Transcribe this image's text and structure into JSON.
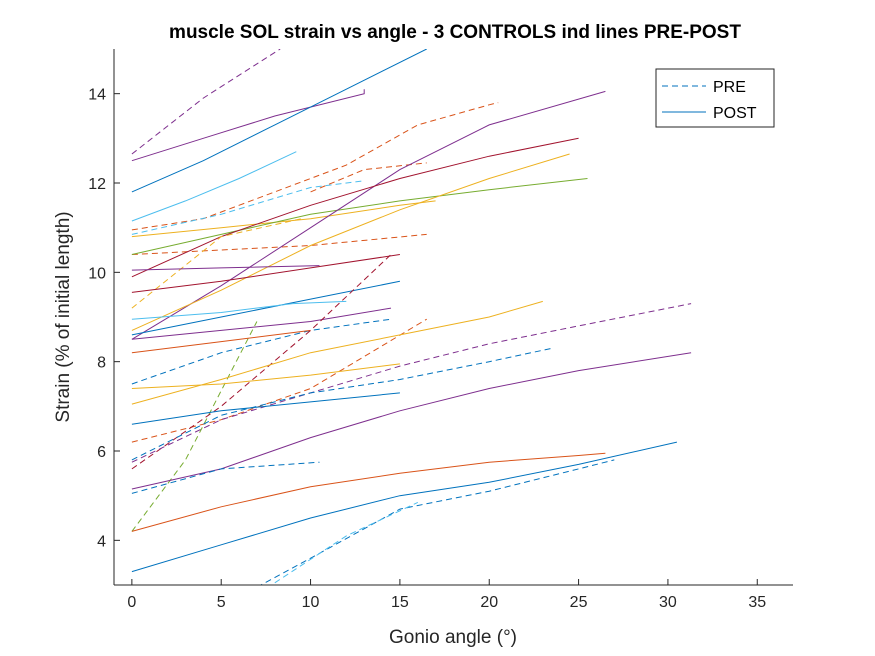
{
  "chart_data": {
    "type": "line",
    "title": "muscle SOL strain vs angle - 3 CONTROLS ind lines PRE-POST",
    "xlabel": "Gonio angle (°)",
    "ylabel": "Strain (% of initial length)",
    "xlim": [
      -1,
      37
    ],
    "ylim": [
      3,
      15
    ],
    "xticks": [
      "0",
      "5",
      "10",
      "15",
      "20",
      "25",
      "30",
      "35"
    ],
    "yticks": [
      "4",
      "6",
      "8",
      "10",
      "12",
      "14"
    ],
    "grid": false,
    "legend_position": "top-right",
    "legend": [
      {
        "label": "PRE",
        "style": "dashed",
        "color": "#0072BD"
      },
      {
        "label": "POST",
        "style": "solid",
        "color": "#0072BD"
      }
    ],
    "series": [
      {
        "style": "dashed",
        "color": "#7E2F8E",
        "x": [
          0,
          4,
          8.3
        ],
        "y": [
          12.65,
          13.9,
          15.0
        ]
      },
      {
        "style": "solid",
        "color": "#7E2F8E",
        "x": [
          0,
          4,
          8,
          13,
          13
        ],
        "y": [
          12.5,
          13.0,
          13.5,
          14.0,
          14.1
        ]
      },
      {
        "style": "solid",
        "color": "#0072BD",
        "x": [
          0,
          4,
          8,
          12,
          16.5
        ],
        "y": [
          11.8,
          12.5,
          13.3,
          14.1,
          15.0
        ]
      },
      {
        "style": "solid",
        "color": "#4DBEEE",
        "x": [
          0,
          3,
          6,
          9.2
        ],
        "y": [
          11.15,
          11.6,
          12.1,
          12.7
        ]
      },
      {
        "style": "dashed",
        "color": "#D95319",
        "x": [
          0,
          4,
          8,
          12,
          16,
          20,
          20.5
        ],
        "y": [
          10.95,
          11.2,
          11.8,
          12.4,
          13.3,
          13.75,
          13.8
        ]
      },
      {
        "style": "dashed",
        "color": "#D95319",
        "x": [
          0,
          5,
          10,
          16.5
        ],
        "y": [
          10.4,
          10.5,
          10.6,
          10.85
        ]
      },
      {
        "style": "dashed",
        "color": "#D95319",
        "x": [
          10,
          13,
          16.5
        ],
        "y": [
          11.8,
          12.3,
          12.45
        ]
      },
      {
        "style": "dashed",
        "color": "#4DBEEE",
        "x": [
          0,
          5,
          10,
          13
        ],
        "y": [
          10.85,
          11.3,
          11.9,
          12.05
        ]
      },
      {
        "style": "solid",
        "color": "#EDB120",
        "x": [
          0,
          5,
          10,
          15,
          17
        ],
        "y": [
          10.8,
          11.0,
          11.2,
          11.5,
          11.6
        ]
      },
      {
        "style": "solid",
        "color": "#77AC30",
        "x": [
          0,
          5,
          10,
          15,
          20,
          25.5
        ],
        "y": [
          10.4,
          10.85,
          11.3,
          11.6,
          11.85,
          12.1
        ]
      },
      {
        "style": "solid",
        "color": "#7E2F8E",
        "x": [
          0,
          5,
          10,
          15,
          20,
          26.5
        ],
        "y": [
          8.5,
          9.7,
          11.0,
          12.3,
          13.3,
          14.05
        ]
      },
      {
        "style": "solid",
        "color": "#A2142F",
        "x": [
          0,
          5,
          10,
          15,
          20,
          25
        ],
        "y": [
          9.9,
          10.8,
          11.5,
          12.1,
          12.6,
          13.0
        ]
      },
      {
        "style": "solid",
        "color": "#EDB120",
        "x": [
          0,
          5,
          10,
          15,
          20,
          24.5
        ],
        "y": [
          8.7,
          9.6,
          10.6,
          11.4,
          12.1,
          12.65
        ]
      },
      {
        "style": "dashed",
        "color": "#EDB120",
        "x": [
          0,
          5,
          9.5
        ],
        "y": [
          9.2,
          10.8,
          11.2
        ]
      },
      {
        "style": "dashed",
        "color": "#77AC30",
        "x": [
          0,
          3,
          7
        ],
        "y": [
          4.2,
          5.8,
          8.9
        ]
      },
      {
        "style": "solid",
        "color": "#7E2F8E",
        "x": [
          0,
          5,
          10.5
        ],
        "y": [
          10.05,
          10.1,
          10.15
        ]
      },
      {
        "style": "solid",
        "color": "#A2142F",
        "x": [
          0,
          5,
          10,
          15
        ],
        "y": [
          9.55,
          9.8,
          10.1,
          10.4
        ]
      },
      {
        "style": "solid",
        "color": "#0072BD",
        "x": [
          0,
          5,
          10,
          15
        ],
        "y": [
          8.6,
          9.0,
          9.4,
          9.8
        ]
      },
      {
        "style": "solid",
        "color": "#4DBEEE",
        "x": [
          0,
          5,
          9,
          12
        ],
        "y": [
          8.95,
          9.1,
          9.3,
          9.35
        ]
      },
      {
        "style": "solid",
        "color": "#7E2F8E",
        "x": [
          0,
          5,
          10,
          14.5
        ],
        "y": [
          8.5,
          8.7,
          8.9,
          9.2
        ]
      },
      {
        "style": "dashed",
        "color": "#0072BD",
        "x": [
          0,
          5,
          10,
          14.5
        ],
        "y": [
          7.5,
          8.2,
          8.7,
          8.95
        ]
      },
      {
        "style": "solid",
        "color": "#D95319",
        "x": [
          0,
          5,
          10
        ],
        "y": [
          8.2,
          8.45,
          8.7
        ]
      },
      {
        "style": "dashed",
        "color": "#D95319",
        "x": [
          0,
          5,
          10,
          16.5
        ],
        "y": [
          6.2,
          6.7,
          7.4,
          8.95
        ]
      },
      {
        "style": "dashed",
        "color": "#A2142F",
        "x": [
          0,
          5,
          10,
          14.5
        ],
        "y": [
          5.6,
          7.0,
          8.7,
          10.4
        ]
      },
      {
        "style": "solid",
        "color": "#EDB120",
        "x": [
          0,
          5,
          10,
          15,
          20,
          23
        ],
        "y": [
          7.05,
          7.6,
          8.2,
          8.6,
          9.0,
          9.35
        ]
      },
      {
        "style": "solid",
        "color": "#EDB120",
        "x": [
          0,
          5,
          10,
          15
        ],
        "y": [
          7.4,
          7.5,
          7.7,
          7.95
        ]
      },
      {
        "style": "dashed",
        "color": "#7E2F8E",
        "x": [
          0,
          5,
          10,
          15,
          20,
          25,
          31.3
        ],
        "y": [
          5.75,
          6.7,
          7.3,
          7.9,
          8.4,
          8.8,
          9.3
        ]
      },
      {
        "style": "dashed",
        "color": "#0072BD",
        "x": [
          0,
          5,
          10,
          15,
          20,
          23.5
        ],
        "y": [
          5.8,
          6.8,
          7.3,
          7.6,
          8.0,
          8.3
        ]
      },
      {
        "style": "solid",
        "color": "#7E2F8E",
        "x": [
          0,
          5,
          10,
          15,
          20,
          25,
          31.3
        ],
        "y": [
          5.15,
          5.6,
          6.3,
          6.9,
          7.4,
          7.8,
          8.2
        ]
      },
      {
        "style": "solid",
        "color": "#0072BD",
        "x": [
          0,
          5,
          10,
          15
        ],
        "y": [
          6.6,
          6.9,
          7.1,
          7.3
        ]
      },
      {
        "style": "dashed",
        "color": "#0072BD",
        "x": [
          0,
          5,
          10.5
        ],
        "y": [
          5.05,
          5.6,
          5.75
        ]
      },
      {
        "style": "solid",
        "color": "#D95319",
        "x": [
          0,
          5,
          10,
          15,
          20,
          25,
          26.5
        ],
        "y": [
          4.2,
          4.75,
          5.2,
          5.5,
          5.75,
          5.9,
          5.95
        ]
      },
      {
        "style": "solid",
        "color": "#0072BD",
        "x": [
          0,
          5,
          10,
          15,
          20,
          25,
          30.5
        ],
        "y": [
          3.3,
          3.9,
          4.5,
          5.0,
          5.3,
          5.7,
          6.2
        ]
      },
      {
        "style": "dashed",
        "color": "#0072BD",
        "x": [
          7,
          10,
          15,
          20,
          25,
          27
        ],
        "y": [
          2.95,
          3.6,
          4.7,
          5.1,
          5.6,
          5.8
        ]
      },
      {
        "style": "dashed",
        "color": "#4DBEEE",
        "x": [
          8,
          12,
          16
        ],
        "y": [
          3.05,
          4.1,
          4.85
        ]
      }
    ]
  }
}
